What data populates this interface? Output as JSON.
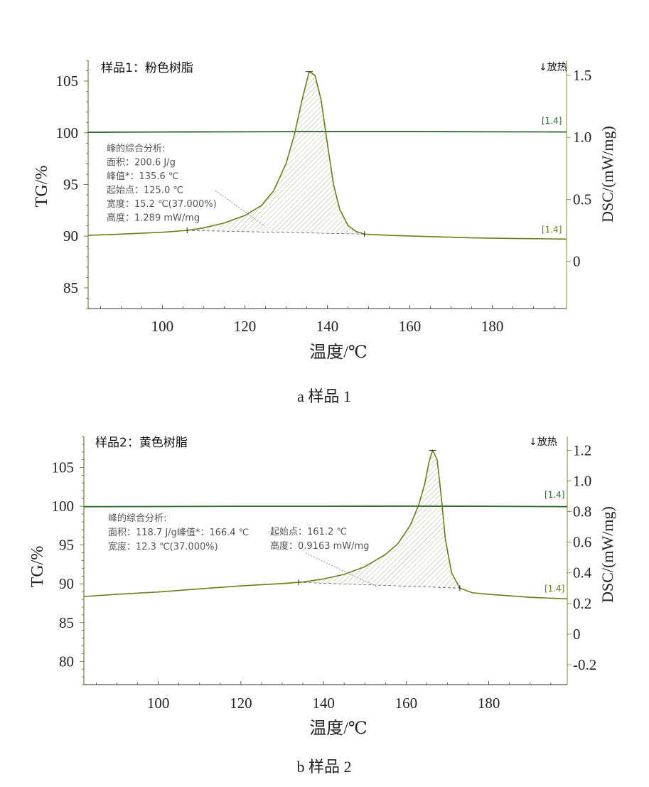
{
  "chart_data": [
    {
      "type": "line",
      "panel_title": "样品1：粉色树脂",
      "exo_label": "↓放热",
      "caption": "a 样品 1",
      "xlabel": "温度/℃",
      "ylabel_left": "TG/%",
      "ylabel_right": "DSC/(mW/mg)",
      "xlim": [
        82,
        198
      ],
      "ylim_left": [
        83,
        107
      ],
      "ylim_right": [
        -0.38,
        1.62
      ],
      "x_ticks": [
        100,
        120,
        140,
        160,
        180
      ],
      "y_left_ticks": [
        85,
        90,
        95,
        100,
        105
      ],
      "y_right_ticks": [
        0,
        0.5,
        1.0,
        1.5
      ],
      "y_right_tick_labels": [
        "0",
        "0.5",
        "1.0",
        "1.5"
      ],
      "tg_marker": "[1.4]",
      "dsc_marker": "[1.4]",
      "grid": false,
      "series": [
        {
          "axis": "left",
          "color": "#2e6a2e",
          "x": [
            82,
            100,
            120,
            140,
            160,
            180,
            198
          ],
          "y": [
            100.05,
            100.08,
            100.1,
            100.12,
            100.12,
            100.1,
            100.08
          ]
        },
        {
          "axis": "right",
          "color": "#6b7d1a",
          "x": [
            82,
            90,
            100,
            106,
            110,
            115,
            120,
            124,
            127,
            130,
            132,
            134,
            135.6,
            137,
            138.5,
            140,
            141.5,
            143,
            145,
            147,
            149,
            155,
            165,
            175,
            185,
            198
          ],
          "y": [
            0.21,
            0.22,
            0.235,
            0.25,
            0.27,
            0.31,
            0.37,
            0.45,
            0.57,
            0.79,
            1.02,
            1.32,
            1.53,
            1.5,
            1.3,
            0.95,
            0.62,
            0.42,
            0.29,
            0.24,
            0.22,
            0.21,
            0.2,
            0.19,
            0.185,
            0.18
          ]
        }
      ],
      "peak": {
        "heading": "峰的综合分析:",
        "lines": [
          "面积：200.6 J/g",
          "峰值*：135.6 ℃",
          "起始点：125.0 ℃",
          "宽度：15.2 ℃(37.000%)",
          "高度：1.289 mW/mg"
        ],
        "baseline_start_x": 106,
        "baseline_end_x": 149,
        "peak_x": 135.6
      }
    },
    {
      "type": "line",
      "panel_title": "样品2：黄色树脂",
      "exo_label": "↓放热",
      "caption": "b 样品 2",
      "xlabel": "温度/℃",
      "ylabel_left": "TG/%",
      "ylabel_right": "DSC/(mW/mg)",
      "xlim": [
        82,
        199
      ],
      "ylim_left": [
        77,
        109
      ],
      "ylim_right": [
        -0.33,
        1.29
      ],
      "x_ticks": [
        100,
        120,
        140,
        160,
        180
      ],
      "y_left_ticks": [
        80,
        85,
        90,
        95,
        100,
        105
      ],
      "y_right_ticks": [
        -0.2,
        0,
        0.2,
        0.4,
        0.6,
        0.8,
        1.0,
        1.2
      ],
      "y_right_tick_labels": [
        "-0.2",
        "0",
        "0.2",
        "0.4",
        "0.6",
        "0.8",
        "1.0",
        "1.2"
      ],
      "tg_marker": "[1.4]",
      "dsc_marker": "[1.4]",
      "grid": false,
      "series": [
        {
          "axis": "left",
          "color": "#2e6a2e",
          "x": [
            82,
            100,
            120,
            140,
            160,
            180,
            199
          ],
          "y": [
            99.95,
            99.97,
            100.0,
            100.0,
            100.02,
            100.0,
            99.95
          ]
        },
        {
          "axis": "right",
          "color": "#6b7d1a",
          "x": [
            82,
            90,
            100,
            110,
            120,
            130,
            135,
            140,
            145,
            150,
            155,
            158,
            161,
            163,
            164.5,
            165.5,
            166.4,
            167.5,
            168.5,
            169.5,
            171,
            173,
            176,
            180,
            190,
            199
          ],
          "y": [
            0.245,
            0.26,
            0.275,
            0.295,
            0.315,
            0.33,
            0.34,
            0.36,
            0.39,
            0.44,
            0.52,
            0.59,
            0.71,
            0.84,
            0.98,
            1.12,
            1.2,
            1.14,
            0.9,
            0.62,
            0.4,
            0.3,
            0.27,
            0.26,
            0.24,
            0.23
          ]
        }
      ],
      "peak": {
        "heading": "峰的综合分析:",
        "lines": [
          "面积：118.7 J/g峰值*：166.4 ℃",
          "宽度：12.3 ℃(37.000%)"
        ],
        "lines_right": [
          "起始点：161.2 ℃",
          "高度：0.9163 mW/mg"
        ],
        "baseline_start_x": 134,
        "baseline_end_x": 173,
        "peak_x": 166.4
      }
    }
  ]
}
